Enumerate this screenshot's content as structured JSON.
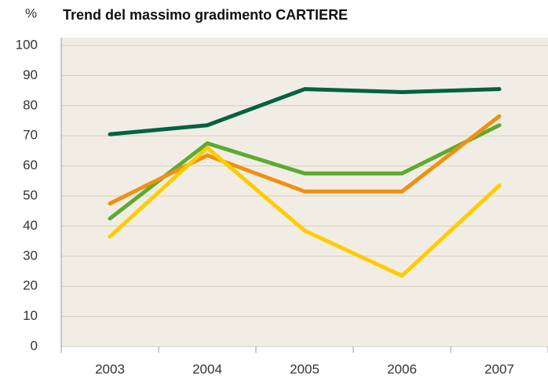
{
  "chart_data": {
    "type": "line",
    "title": "Trend del massimo gradimento CARTIERE",
    "y_label": "%",
    "categories": [
      "2003",
      "2004",
      "2005",
      "2006",
      "2007"
    ],
    "series": [
      {
        "color": "#00623f",
        "values": [
          70.5,
          73.5,
          85.5,
          84.5,
          85.5
        ]
      },
      {
        "color": "#5cab2d",
        "values": [
          42.5,
          67.5,
          57.5,
          57.5,
          73.5
        ]
      },
      {
        "color": "#f0900f",
        "values": [
          47.5,
          63.5,
          51.5,
          51.5,
          76.5
        ]
      },
      {
        "color": "#ffcc00",
        "values": [
          36.5,
          66,
          38.5,
          23.5,
          53.5
        ]
      }
    ],
    "ylim": [
      0,
      100
    ],
    "yticks": [
      0,
      10,
      20,
      30,
      40,
      50,
      60,
      70,
      80,
      90,
      100
    ],
    "grid": true
  }
}
